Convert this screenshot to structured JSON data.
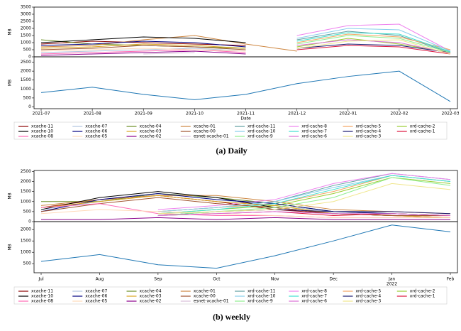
{
  "chart_data": [
    {
      "type": "line",
      "title": "(a) Daily",
      "x_label": "Date",
      "categories": [
        "2021-07",
        "2021-08",
        "2021-09",
        "2021-10",
        "2021-11",
        "2021-12",
        "2022-01",
        "2022-02",
        "2022-03"
      ],
      "top": {
        "y_label": "MB",
        "ylim": [
          0,
          3500
        ],
        "yticks": [
          0,
          500,
          1000,
          1500,
          2000,
          2500,
          3000,
          3500
        ],
        "series": [
          {
            "name": "xcache-11",
            "color": "#8b0000",
            "values": [
              900,
              1100,
              1000,
              900,
              800,
              null,
              null,
              null,
              null
            ]
          },
          {
            "name": "xcache-07",
            "color": "#b0c4de",
            "values": [
              300,
              400,
              500,
              600,
              400,
              null,
              null,
              null,
              null
            ]
          },
          {
            "name": "xcache-04",
            "color": "#6b8e23",
            "values": [
              1200,
              900,
              800,
              700,
              600,
              null,
              null,
              null,
              null
            ]
          },
          {
            "name": "xcache-01",
            "color": "#cd853f",
            "values": [
              700,
              800,
              1200,
              1500,
              900,
              400,
              null,
              null,
              null
            ]
          },
          {
            "name": "xrd-cache-11",
            "color": "#5f9ea0",
            "values": [
              null,
              null,
              null,
              null,
              null,
              1200,
              1800,
              1500,
              300
            ]
          },
          {
            "name": "xrd-cache-8",
            "color": "#ee82ee",
            "values": [
              null,
              null,
              null,
              null,
              null,
              1500,
              2200,
              2300,
              400
            ]
          },
          {
            "name": "xrd-cache-5",
            "color": "#f4a460",
            "values": [
              null,
              null,
              null,
              null,
              null,
              1000,
              1600,
              1400,
              500
            ]
          },
          {
            "name": "xrd-cache-2",
            "color": "#9acd32",
            "values": [
              null,
              null,
              null,
              null,
              null,
              700,
              1300,
              900,
              300
            ]
          },
          {
            "name": "xcache-10",
            "color": "#000000",
            "values": [
              1000,
              1200,
              1400,
              1300,
              1000,
              null,
              null,
              null,
              null
            ]
          },
          {
            "name": "xcache-06",
            "color": "#000080",
            "values": [
              800,
              900,
              1100,
              1000,
              700,
              null,
              null,
              null,
              null
            ]
          },
          {
            "name": "xcache-03",
            "color": "#daa520",
            "values": [
              600,
              700,
              900,
              800,
              600,
              null,
              null,
              null,
              null
            ]
          },
          {
            "name": "xcache-00",
            "color": "#a0522d",
            "values": [
              500,
              600,
              800,
              700,
              500,
              null,
              null,
              null,
              null
            ]
          },
          {
            "name": "xrd-cache-10",
            "color": "#87ceeb",
            "values": [
              null,
              null,
              null,
              null,
              null,
              1300,
              2000,
              1900,
              400
            ]
          },
          {
            "name": "xrd-cache-7",
            "color": "#40e0d0",
            "values": [
              null,
              null,
              null,
              null,
              null,
              1100,
              1700,
              1600,
              350
            ]
          },
          {
            "name": "xrd-cache-4",
            "color": "#191970",
            "values": [
              null,
              null,
              null,
              null,
              null,
              600,
              900,
              800,
              300
            ]
          },
          {
            "name": "xrd-cache-1",
            "color": "#dc143c",
            "values": [
              null,
              null,
              null,
              null,
              null,
              500,
              800,
              700,
              200
            ]
          },
          {
            "name": "xcache-08",
            "color": "#ff69b4",
            "values": [
              200,
              300,
              400,
              500,
              300,
              null,
              null,
              null,
              null
            ]
          },
          {
            "name": "xcache-05",
            "color": "#ffdab9",
            "values": [
              400,
              500,
              600,
              500,
              400,
              null,
              null,
              null,
              null
            ]
          },
          {
            "name": "xcache-02",
            "color": "#8b008b",
            "values": [
              100,
              200,
              300,
              400,
              200,
              null,
              null,
              null,
              null
            ]
          },
          {
            "name": "esnet-xcache-01",
            "color": "#d8bfd8",
            "values": [
              null,
              null,
              200,
              300,
              null,
              null,
              null,
              null,
              null
            ]
          },
          {
            "name": "xrd-cache-9",
            "color": "#90ee90",
            "values": [
              null,
              null,
              null,
              null,
              null,
              900,
              1500,
              1300,
              300
            ]
          },
          {
            "name": "xrd-cache-6",
            "color": "#da70d6",
            "values": [
              null,
              null,
              null,
              null,
              null,
              800,
              1200,
              1000,
              250
            ]
          },
          {
            "name": "xrd-cache-3",
            "color": "#f0e68c",
            "values": [
              null,
              null,
              null,
              null,
              null,
              600,
              1100,
              1200,
              200
            ]
          }
        ]
      },
      "bottom": {
        "y_label": "MB",
        "ylim": [
          -100,
          2800
        ],
        "yticks": [
          0,
          500,
          1000,
          1500,
          2000,
          2500
        ],
        "series": [
          {
            "color": "#1f77b4",
            "values": [
              800,
              1100,
              700,
              400,
              700,
              1300,
              1700,
              2000,
              300
            ]
          }
        ]
      }
    },
    {
      "type": "line",
      "title": "(b) weekly",
      "x_year_label": "2022",
      "categories": [
        "Jul",
        "Aug",
        "Sep",
        "Oct",
        "Nov",
        "Dec",
        "Jan",
        "Feb"
      ],
      "top": {
        "y_label": "MB",
        "ylim": [
          0,
          2550
        ],
        "yticks": [
          0,
          500,
          1000,
          1500,
          2000,
          2500
        ],
        "series": [
          {
            "name": "xcache-11",
            "color": "#8b0000",
            "values": [
              700,
              1100,
              1300,
              1000,
              600,
              400,
              300,
              200
            ]
          },
          {
            "name": "xcache-07",
            "color": "#b0c4de",
            "values": [
              600,
              1000,
              1400,
              1100,
              800,
              500,
              400,
              300
            ]
          },
          {
            "name": "xcache-04",
            "color": "#6b8e23",
            "values": [
              1000,
              1000,
              1400,
              1200,
              900,
              500,
              400,
              300
            ]
          },
          {
            "name": "xcache-01",
            "color": "#cd853f",
            "values": [
              800,
              1100,
              1300,
              1300,
              1000,
              600,
              500,
              400
            ]
          },
          {
            "name": "xrd-cache-11",
            "color": "#5f9ea0",
            "values": [
              null,
              null,
              500,
              700,
              1000,
              1800,
              2400,
              2100
            ]
          },
          {
            "name": "xrd-cache-8",
            "color": "#ee82ee",
            "values": [
              null,
              null,
              600,
              800,
              1100,
              1900,
              2400,
              2100
            ]
          },
          {
            "name": "xrd-cache-5",
            "color": "#f4a460",
            "values": [
              null,
              null,
              500,
              700,
              900,
              1500,
              2300,
              2000
            ]
          },
          {
            "name": "xrd-cache-2",
            "color": "#9acd32",
            "values": [
              null,
              null,
              400,
              600,
              800,
              1400,
              2200,
              1900
            ]
          },
          {
            "name": "xcache-10",
            "color": "#000000",
            "values": [
              600,
              1200,
              1500,
              1200,
              700,
              400,
              300,
              300
            ]
          },
          {
            "name": "xcache-06",
            "color": "#000080",
            "values": [
              500,
              1100,
              1400,
              1100,
              900,
              500,
              400,
              300
            ]
          },
          {
            "name": "xcache-03",
            "color": "#daa520",
            "values": [
              700,
              1000,
              1300,
              1000,
              800,
              400,
              300,
              200
            ]
          },
          {
            "name": "xcache-00",
            "color": "#a0522d",
            "values": [
              500,
              900,
              1200,
              900,
              700,
              400,
              300,
              300
            ]
          },
          {
            "name": "xrd-cache-10",
            "color": "#87ceeb",
            "values": [
              null,
              null,
              500,
              700,
              1000,
              1700,
              2300,
              2000
            ]
          },
          {
            "name": "xrd-cache-7",
            "color": "#40e0d0",
            "values": [
              null,
              null,
              400,
              600,
              900,
              1600,
              2300,
              2000
            ]
          },
          {
            "name": "xrd-cache-4",
            "color": "#191970",
            "values": [
              null,
              null,
              300,
              500,
              600,
              500,
              500,
              400
            ]
          },
          {
            "name": "xrd-cache-1",
            "color": "#dc143c",
            "values": [
              null,
              null,
              300,
              400,
              500,
              300,
              400,
              300
            ]
          },
          {
            "name": "xcache-08",
            "color": "#ff69b4",
            "values": [
              700,
              900,
              400,
              300,
              300,
              200,
              200,
              200
            ]
          },
          {
            "name": "xcache-05",
            "color": "#ffdab9",
            "values": [
              400,
              600,
              500,
              400,
              300,
              200,
              200,
              200
            ]
          },
          {
            "name": "xcache-02",
            "color": "#8b008b",
            "values": [
              100,
              100,
              200,
              100,
              200,
              100,
              100,
              100
            ]
          },
          {
            "name": "esnet-xcache-01",
            "color": "#d8bfd8",
            "values": [
              null,
              null,
              300,
              400,
              null,
              null,
              null,
              null
            ]
          },
          {
            "name": "xrd-cache-9",
            "color": "#90ee90",
            "values": [
              null,
              null,
              300,
              500,
              700,
              1200,
              2200,
              1800
            ]
          },
          {
            "name": "xrd-cache-6",
            "color": "#da70d6",
            "values": [
              null,
              null,
              300,
              400,
              500,
              400,
              400,
              300
            ]
          },
          {
            "name": "xrd-cache-3",
            "color": "#f0e68c",
            "values": [
              null,
              null,
              400,
              500,
              600,
              1000,
              1900,
              1600
            ]
          }
        ]
      },
      "bottom": {
        "y_label": "MB",
        "ylim": [
          100,
          2350
        ],
        "yticks": [
          500,
          1000,
          1500,
          2000
        ],
        "series": [
          {
            "color": "#1f77b4",
            "values": [
              600,
              900,
              450,
              300,
              850,
              1500,
              2200,
              1900
            ]
          }
        ]
      }
    }
  ]
}
